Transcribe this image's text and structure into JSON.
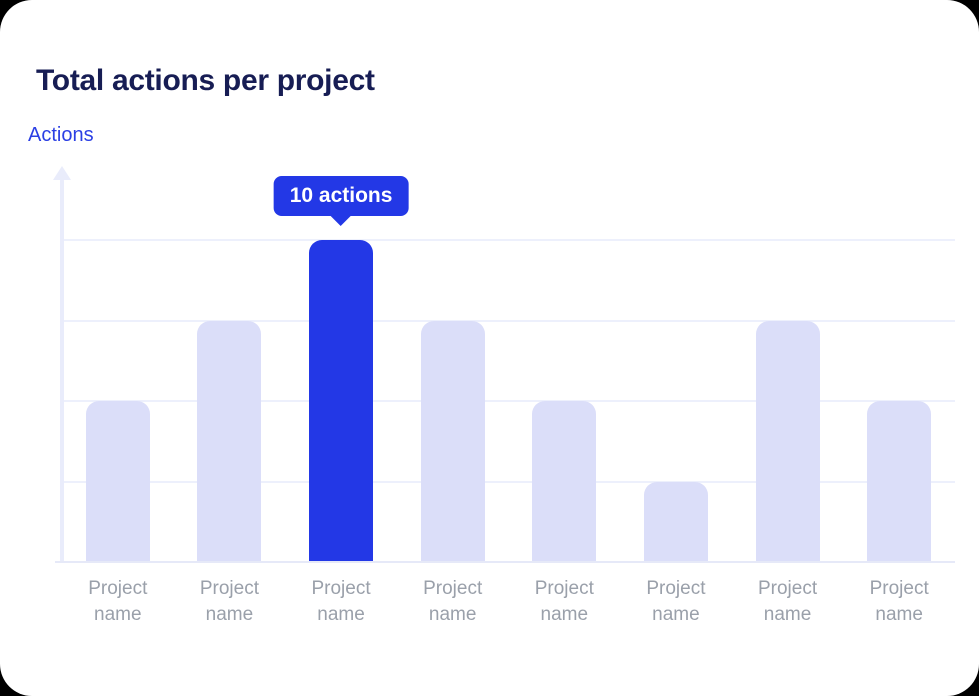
{
  "header": {
    "title": "Total actions per project"
  },
  "chart_data": {
    "type": "bar",
    "title": "Total actions per project",
    "xlabel": "",
    "ylabel": "Actions",
    "categories": [
      "Project name",
      "Project name",
      "Project name",
      "Project name",
      "Project name",
      "Project name",
      "Project name",
      "Project name"
    ],
    "values": [
      5,
      7.5,
      10,
      7.5,
      5,
      2.5,
      7.5,
      5
    ],
    "unit": "actions",
    "highlighted_index": 2,
    "tooltip": {
      "text": "10 actions"
    },
    "ylim": [
      0,
      12.3
    ],
    "gridline_values": [
      2.5,
      5,
      7.5,
      10
    ],
    "grid": "on",
    "legend": "none",
    "colors": {
      "bar": "#DBDEF9",
      "highlight": "#2338E6",
      "gridline": "#EDF0FC",
      "axis": "#E9ECFB",
      "title": "#171D54",
      "ylabel_text": "#2B3FE4",
      "category_text": "#9AA0AA",
      "tooltip_bg": "#2338E6",
      "tooltip_text": "#FFFFFF"
    }
  }
}
